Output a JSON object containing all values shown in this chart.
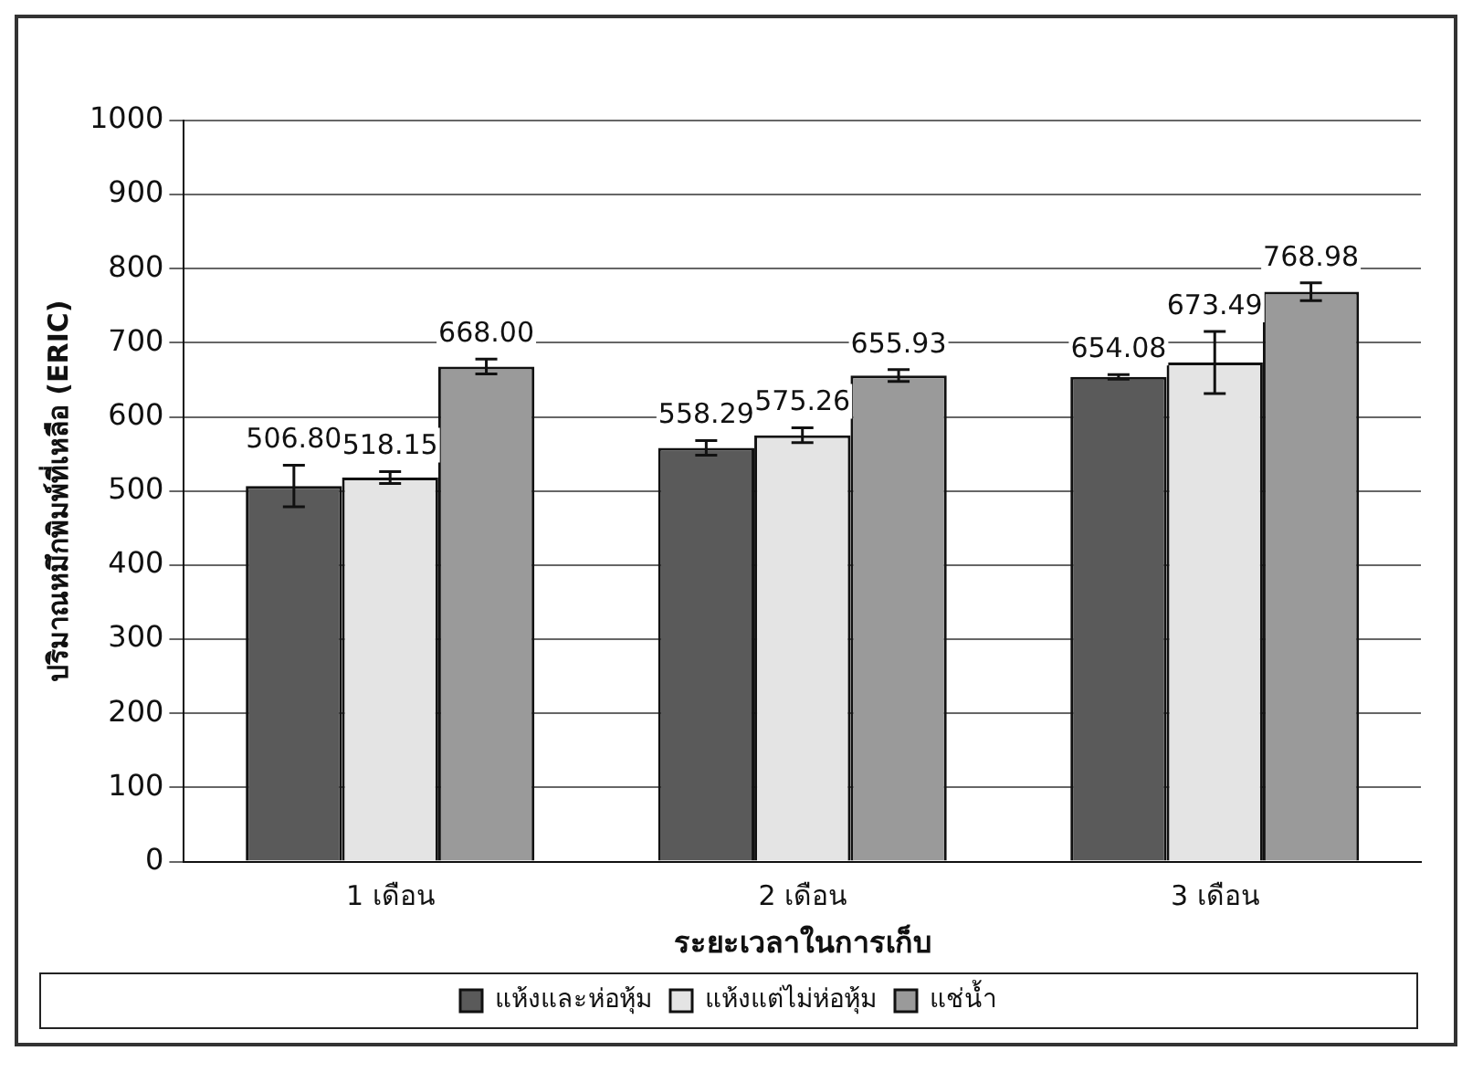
{
  "chart_data": {
    "type": "bar",
    "xlabel": "ระยะเวลาในการเก็บ",
    "ylabel": "ปริมาณหมึกพิมพ์ที่เหลือ (ERIC)",
    "categories": [
      "1 เดือน",
      "2 เดือน",
      "3 เดือน"
    ],
    "series": [
      {
        "name": "แห้งและห่อหุ้ม",
        "color": "#5a5a5a",
        "values": [
          506.8,
          558.29,
          654.08
        ],
        "errors": [
          28,
          10,
          3
        ],
        "value_labels": [
          "506.80",
          "558.29",
          "654.08"
        ]
      },
      {
        "name": "แห้งแต่ไม่ห่อหุ้ม",
        "color": "#e4e4e4",
        "values": [
          518.15,
          575.26,
          673.49
        ],
        "errors": [
          8,
          10,
          42
        ],
        "value_labels": [
          "518.15",
          "575.26",
          "673.49"
        ]
      },
      {
        "name": "แช่น้ำ",
        "color": "#9a9a9a",
        "values": [
          668,
          655.93,
          768.98
        ],
        "errors": [
          10,
          8,
          12
        ],
        "value_labels": [
          "668.00",
          "655.93",
          "768.98"
        ]
      }
    ],
    "ylim": [
      0,
      1000
    ],
    "yticks": [
      0,
      100,
      200,
      300,
      400,
      500,
      600,
      700,
      800,
      900,
      1000
    ],
    "grid": "y",
    "legend": "bottom"
  }
}
